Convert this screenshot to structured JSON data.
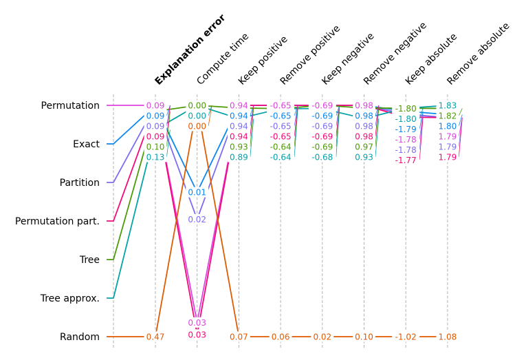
{
  "chart_data": {
    "type": "line",
    "subtype": "parallel-coordinates",
    "methods": [
      "Permutation",
      "Exact",
      "Partition",
      "Permutation part.",
      "Tree",
      "Tree approx.",
      "Random"
    ],
    "metrics": [
      "Explanation error",
      "Compute time",
      "Keep positive",
      "Remove positive",
      "Keep negative",
      "Remove negative",
      "Keep absolute",
      "Remove absolute"
    ],
    "highlighted_metric": "Explanation error",
    "axis_ranges": [
      [
        0.09,
        0.47
      ],
      [
        0.0,
        0.0325
      ],
      [
        0.94,
        0.07
      ],
      [
        -0.65,
        0.06
      ],
      [
        -0.69,
        0.02
      ],
      [
        0.98,
        0.1
      ],
      [
        -1.81,
        -1.02
      ],
      [
        1.83,
        1.08
      ]
    ],
    "series": [
      {
        "name": "Permutation",
        "color": "#dd44dd",
        "values": [
          0.09,
          0.0305,
          0.94,
          -0.65,
          -0.69,
          0.98,
          -1.78,
          1.79
        ]
      },
      {
        "name": "Exact",
        "color": "#0a86f0",
        "values": [
          0.09,
          0.0122,
          0.94,
          -0.65,
          -0.69,
          0.98,
          -1.79,
          1.8
        ]
      },
      {
        "name": "Partition",
        "color": "#7b6cf4",
        "values": [
          0.09,
          0.016,
          0.94,
          -0.65,
          -0.69,
          0.98,
          -1.78,
          1.79
        ]
      },
      {
        "name": "Permutation part.",
        "color": "#f5077a",
        "values": [
          0.09,
          0.0322,
          0.94,
          -0.65,
          -0.69,
          0.98,
          -1.77,
          1.79
        ]
      },
      {
        "name": "Tree",
        "color": "#4b9a06",
        "values": [
          0.1,
          0.0,
          0.93,
          -0.64,
          -0.69,
          0.97,
          -1.8,
          1.82
        ]
      },
      {
        "name": "Tree approx.",
        "color": "#05a2a8",
        "values": [
          0.13,
          0.0,
          0.89,
          -0.64,
          -0.68,
          0.93,
          -1.8,
          1.83
        ]
      },
      {
        "name": "Random",
        "color": "#e05a00",
        "values": [
          0.47,
          0.0,
          0.07,
          0.06,
          0.02,
          0.1,
          -1.02,
          1.08
        ]
      }
    ],
    "grid": "dashed vertical axes",
    "legend": "none"
  }
}
